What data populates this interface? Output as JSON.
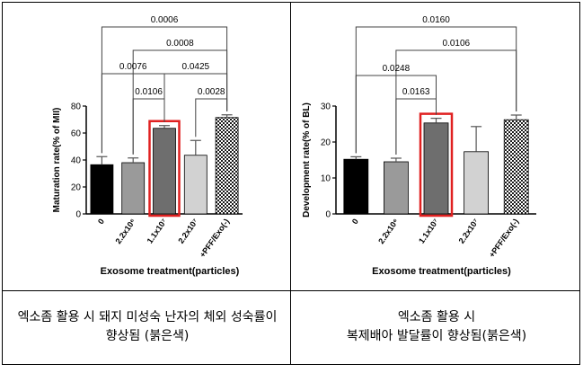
{
  "captions": {
    "left": "엑소좀 활용 시 돼지 미성숙 난자의 체외 성숙률이 향상됨 (붉은색)",
    "right_line1": "엑소좀 활용 시",
    "right_line2": "복제배아 발달률이 향상됨(붉은색)"
  },
  "chart_data": [
    {
      "type": "bar",
      "categories": [
        "0",
        "2.2x10⁶",
        "1.1x10⁷",
        "2.2x10⁷",
        "+PFF/Exo(-)"
      ],
      "values": [
        36.5,
        38,
        63.5,
        43.5,
        71.5
      ],
      "errors": [
        6,
        3.5,
        2,
        11,
        2
      ],
      "colors": [
        "#000000",
        "#9a9a9a",
        "#6e6e6e",
        "#d2d2d2",
        "checker"
      ],
      "highlight_index": 2,
      "highlight_color": "#e02020",
      "ylabel": "Maturation rate(% of MII)",
      "xlabel": "Exosome treatment(particles)",
      "ylim": [
        0,
        80
      ],
      "yticks": [
        0,
        20,
        40,
        60,
        80
      ],
      "comparisons": [
        {
          "from": 0,
          "to": 4,
          "label": "0.0006"
        },
        {
          "from": 1,
          "to": 4,
          "label": "0.0008"
        },
        {
          "from": 0,
          "to": 2,
          "label": "0.0076"
        },
        {
          "from": 2,
          "to": 4,
          "label": "0.0425"
        },
        {
          "from": 1,
          "to": 2,
          "label": "0.0106"
        },
        {
          "from": 3,
          "to": 4,
          "label": "0.0028"
        }
      ]
    },
    {
      "type": "bar",
      "categories": [
        "0",
        "2.2x10⁶",
        "1.1x10⁷",
        "2.2x10⁷",
        "+PFF/Exo(-)"
      ],
      "values": [
        15.2,
        14.5,
        25.3,
        17.3,
        26.2
      ],
      "errors": [
        0.7,
        1.0,
        1.3,
        7.0,
        1.3
      ],
      "colors": [
        "#000000",
        "#9a9a9a",
        "#6e6e6e",
        "#d2d2d2",
        "checker"
      ],
      "highlight_index": 2,
      "highlight_color": "#e02020",
      "ylabel": "Development rate(% of BL)",
      "xlabel": "Exosome treatment(particles)",
      "ylim": [
        0,
        30
      ],
      "yticks": [
        0,
        10,
        20,
        30
      ],
      "comparisons": [
        {
          "from": 0,
          "to": 4,
          "label": "0.0160"
        },
        {
          "from": 1,
          "to": 4,
          "label": "0.0106"
        },
        {
          "from": 0,
          "to": 2,
          "label": "0.0248"
        },
        {
          "from": 1,
          "to": 2,
          "label": "0.0163"
        }
      ]
    }
  ]
}
